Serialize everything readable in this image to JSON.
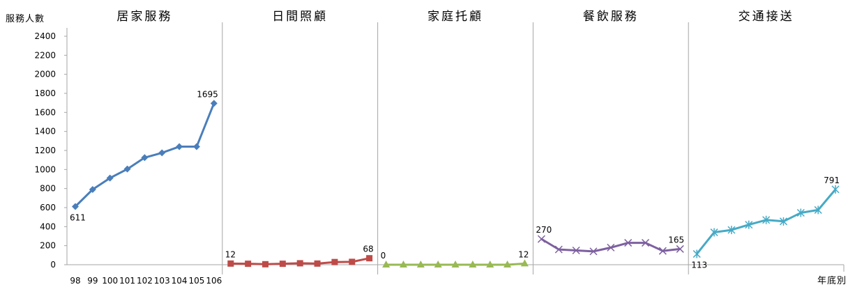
{
  "chart_data": {
    "type": "line",
    "ylabel": "服務人數",
    "xlabel": "年底別",
    "ylim": [
      0,
      2400
    ],
    "yticks": [
      0,
      200,
      400,
      600,
      800,
      1000,
      1200,
      1400,
      1600,
      1800,
      2000,
      2200,
      2400
    ],
    "categories": [
      "98",
      "99",
      "100",
      "101",
      "102",
      "103",
      "104",
      "105",
      "106"
    ],
    "grid": false,
    "series": [
      {
        "name": "居家服務",
        "color": "#4a7ebb",
        "marker": "diamond",
        "values": [
          611,
          790,
          910,
          1005,
          1125,
          1175,
          1240,
          1240,
          1695
        ],
        "labels": [
          {
            "index": 0,
            "text": "611",
            "pos": "below"
          },
          {
            "index": 8,
            "text": "1695",
            "pos": "above"
          }
        ]
      },
      {
        "name": "日間照顧",
        "color": "#be4b48",
        "marker": "square",
        "values": [
          12,
          10,
          5,
          10,
          15,
          12,
          28,
          30,
          68
        ],
        "labels": [
          {
            "index": 0,
            "text": "12",
            "pos": "above"
          },
          {
            "index": 8,
            "text": "68",
            "pos": "above"
          }
        ]
      },
      {
        "name": "家庭托顧",
        "color": "#98b954",
        "marker": "triangle",
        "values": [
          0,
          0,
          0,
          0,
          0,
          0,
          0,
          0,
          12
        ],
        "labels": [
          {
            "index": 0,
            "text": "0",
            "pos": "above"
          },
          {
            "index": 8,
            "text": "12",
            "pos": "above"
          }
        ]
      },
      {
        "name": "餐飲服務",
        "color": "#7d60a0",
        "marker": "x",
        "values": [
          270,
          160,
          150,
          140,
          180,
          230,
          230,
          145,
          165
        ],
        "labels": [
          {
            "index": 0,
            "text": "270",
            "pos": "above"
          },
          {
            "index": 8,
            "text": "165",
            "pos": "above"
          }
        ]
      },
      {
        "name": "交通接送",
        "color": "#46aac5",
        "marker": "star",
        "values": [
          113,
          340,
          365,
          420,
          470,
          455,
          545,
          575,
          791
        ],
        "labels": [
          {
            "index": 0,
            "text": "113",
            "pos": "below"
          },
          {
            "index": 8,
            "text": "791",
            "pos": "above"
          }
        ]
      }
    ]
  }
}
